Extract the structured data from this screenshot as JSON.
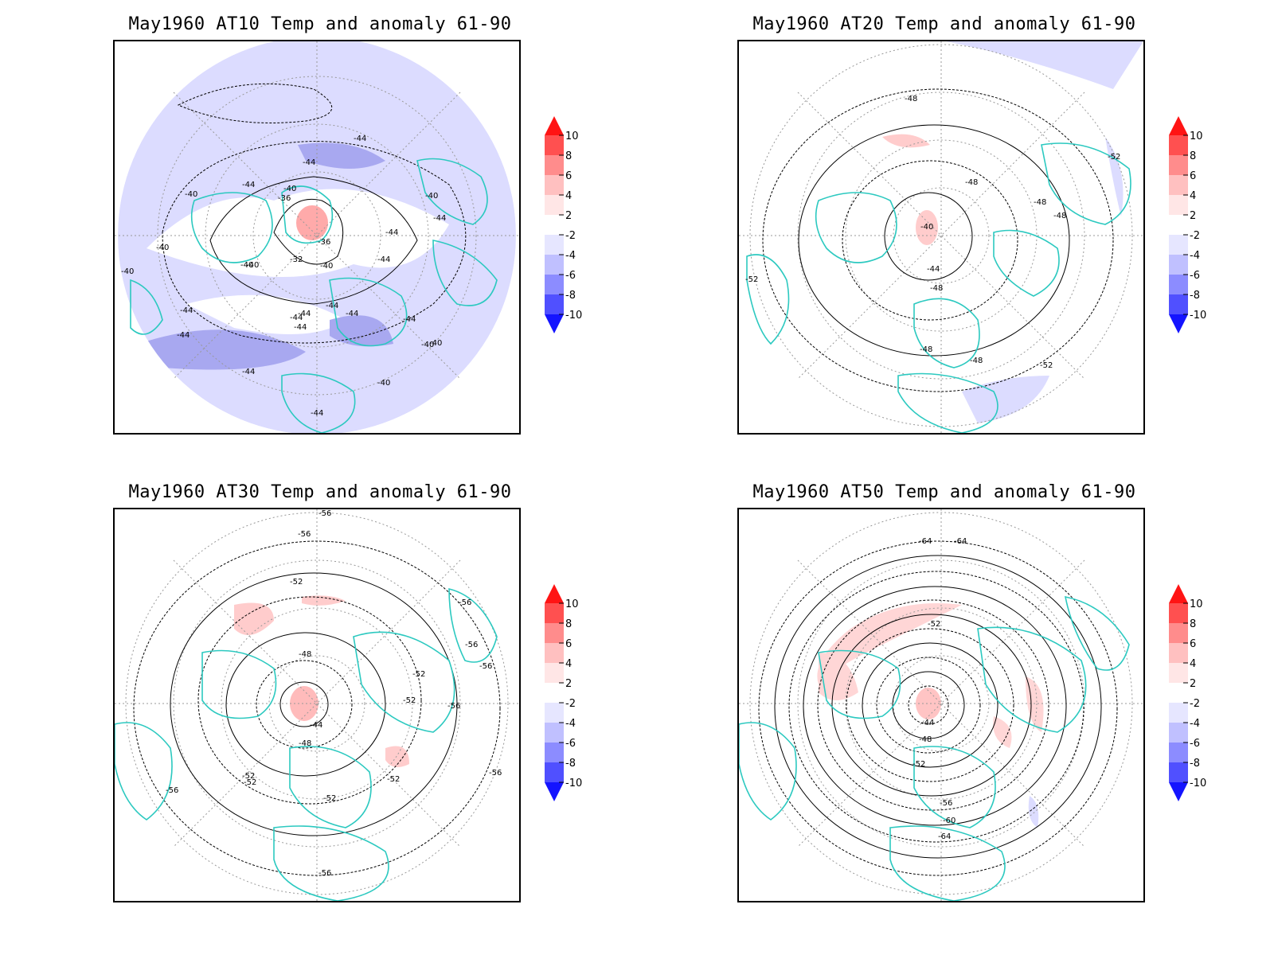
{
  "panels": [
    {
      "title": "May1960 AT10 Temp and anomaly 61-90",
      "contour_labels": [
        "-44",
        "-44",
        "-40",
        "-44",
        "-36",
        "-40",
        "-44",
        "-40",
        "-40",
        "-40",
        "-44",
        "-36",
        "-44",
        "-40",
        "-40",
        "-32",
        "-40",
        "-44",
        "-40",
        "-44",
        "-44",
        "-44",
        "-44",
        "-44",
        "-44",
        "-44",
        "-40",
        "-44",
        "-40",
        "-44"
      ]
    },
    {
      "title": "May1960 AT20 Temp and anomaly 61-90",
      "contour_labels": [
        "-48",
        "-48",
        "-48",
        "-48",
        "-52",
        "-40",
        "-52",
        "-44",
        "-48",
        "-48",
        "-48",
        "-52"
      ]
    },
    {
      "title": "May1960 AT30 Temp and anomaly 61-90",
      "contour_labels": [
        "-56",
        "-56",
        "-52",
        "-56",
        "-48",
        "-56",
        "-56",
        "-52",
        "-52",
        "-56",
        "-44",
        "-48",
        "-52",
        "-52",
        "-56",
        "-52",
        "-56",
        "-52",
        "-56"
      ]
    },
    {
      "title": "May1960 AT50 Temp and anomaly 61-90",
      "contour_labels": [
        "-64",
        "-64",
        "-52",
        "-44",
        "-48",
        "-52",
        "-56",
        "-60",
        "-64"
      ]
    }
  ],
  "colorbar": {
    "ticks": [
      "10",
      "8",
      "6",
      "4",
      "2",
      "-2",
      "-4",
      "-6",
      "-8",
      "-10"
    ],
    "colors": [
      "#ff1414",
      "#ff5050",
      "#ff8c8c",
      "#ffc0c0",
      "#ffe6e6",
      "#ffffff",
      "#e6e6ff",
      "#c0c0ff",
      "#8c8cff",
      "#5050ff",
      "#1414ff"
    ]
  },
  "colors": {
    "coastline": "#2cc9c0",
    "contour": "#000000",
    "warm_anomaly": "#ffc0c0",
    "cold_anomaly": "#c8c8ff",
    "cold_anomaly_strong": "#9999ee"
  }
}
